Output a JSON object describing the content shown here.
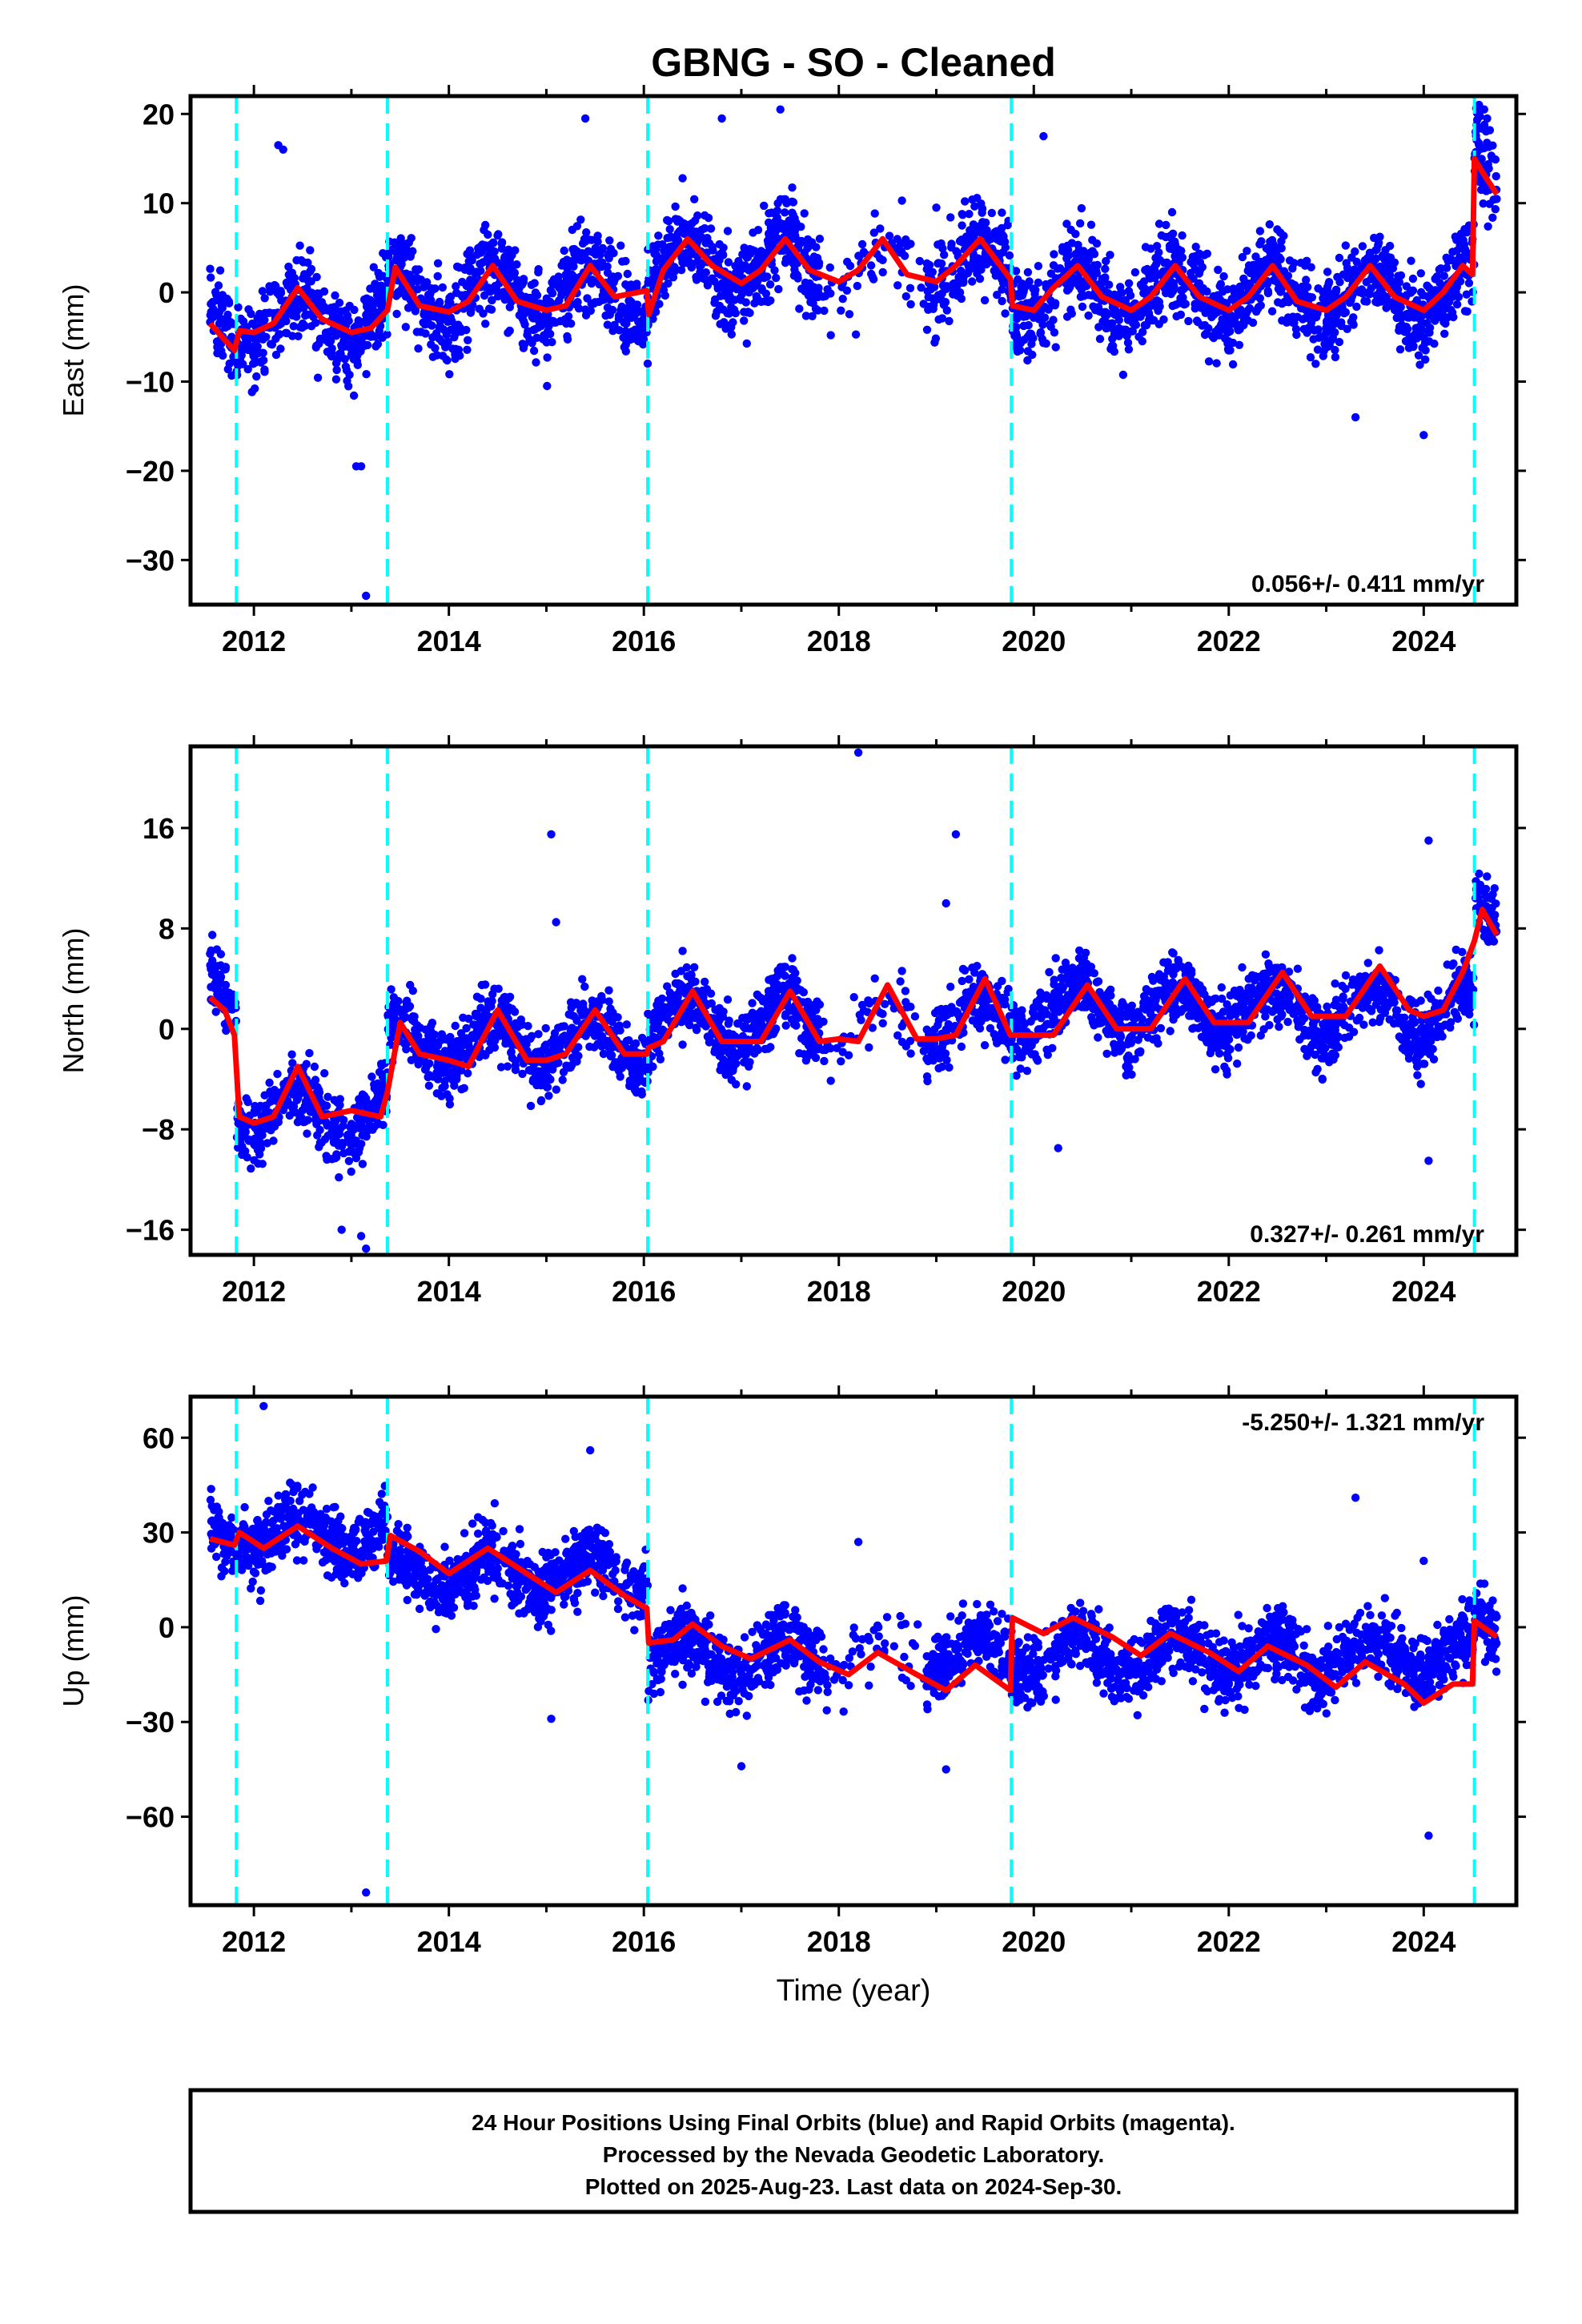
{
  "title": "GBNG  - SO - Cleaned",
  "xlabel": "Time (year)",
  "colors": {
    "points": "#0000ff",
    "fit": "#ff0000",
    "breaks": "#00ffff",
    "frame": "#000000"
  },
  "footer": {
    "line1": "24 Hour Positions Using Final Orbits (blue) and Rapid Orbits (magenta).",
    "line2": "Processed by the Nevada Geodetic Laboratory.",
    "line3": "Plotted on 2025-Aug-23. Last data on 2024-Sep-30."
  },
  "chart_data": [
    {
      "type": "scatter",
      "ylabel": "East (mm)",
      "xlim": [
        2011.35,
        2024.95
      ],
      "ylim": [
        -35,
        22
      ],
      "yticks": [
        20,
        10,
        0,
        -10,
        -20,
        -30
      ],
      "xticks": [
        2012,
        2014,
        2016,
        2018,
        2020,
        2022,
        2024
      ],
      "rate_label": "0.056+/- 0.411 mm/yr",
      "breaks": [
        2011.82,
        2013.37,
        2016.04,
        2019.77,
        2024.52
      ],
      "fit_line": [
        [
          2011.55,
          -3.5
        ],
        [
          2011.8,
          -6.5
        ],
        [
          2011.85,
          -4.3
        ],
        [
          2012.0,
          -4.5
        ],
        [
          2012.2,
          -3.5
        ],
        [
          2012.45,
          0.5
        ],
        [
          2012.7,
          -3.0
        ],
        [
          2013.0,
          -4.5
        ],
        [
          2013.2,
          -4.0
        ],
        [
          2013.37,
          -2.0
        ],
        [
          2013.45,
          2.8
        ],
        [
          2013.7,
          -1.5
        ],
        [
          2014.0,
          -2.2
        ],
        [
          2014.2,
          -1.0
        ],
        [
          2014.45,
          3.0
        ],
        [
          2014.7,
          -1.0
        ],
        [
          2015.0,
          -2.0
        ],
        [
          2015.2,
          -1.5
        ],
        [
          2015.45,
          3.0
        ],
        [
          2015.7,
          -0.5
        ],
        [
          2016.03,
          0.2
        ],
        [
          2016.05,
          -2.5
        ],
        [
          2016.2,
          2.5
        ],
        [
          2016.45,
          6.0
        ],
        [
          2016.7,
          3.0
        ],
        [
          2017.0,
          1.0
        ],
        [
          2017.2,
          2.5
        ],
        [
          2017.45,
          6.0
        ],
        [
          2017.7,
          2.5
        ],
        [
          2018.0,
          1.2
        ],
        [
          2018.2,
          2.5
        ],
        [
          2018.45,
          6.0
        ],
        [
          2018.7,
          2.0
        ],
        [
          2019.0,
          1.2
        ],
        [
          2019.2,
          3.0
        ],
        [
          2019.45,
          6.0
        ],
        [
          2019.76,
          1.5
        ],
        [
          2019.78,
          -1.5
        ],
        [
          2020.0,
          -2.0
        ],
        [
          2020.2,
          0.5
        ],
        [
          2020.45,
          3.0
        ],
        [
          2020.7,
          -0.5
        ],
        [
          2021.0,
          -2.0
        ],
        [
          2021.2,
          -0.5
        ],
        [
          2021.45,
          3.0
        ],
        [
          2021.7,
          -0.5
        ],
        [
          2022.0,
          -2.0
        ],
        [
          2022.2,
          -0.5
        ],
        [
          2022.45,
          3.0
        ],
        [
          2022.7,
          -1.0
        ],
        [
          2023.0,
          -2.0
        ],
        [
          2023.2,
          -0.5
        ],
        [
          2023.45,
          3.0
        ],
        [
          2023.7,
          -0.5
        ],
        [
          2024.0,
          -2.0
        ],
        [
          2024.2,
          0.0
        ],
        [
          2024.4,
          3.0
        ],
        [
          2024.5,
          2.0
        ],
        [
          2024.52,
          15.0
        ],
        [
          2024.6,
          13.5
        ],
        [
          2024.75,
          11.0
        ]
      ],
      "seg_centers": [
        [
          2011.55,
          2011.82,
          -4
        ],
        [
          2011.82,
          2013.37,
          -3
        ],
        [
          2013.37,
          2016.04,
          0
        ],
        [
          2016.04,
          2019.77,
          3
        ],
        [
          2019.77,
          2024.52,
          0
        ],
        [
          2024.52,
          2024.75,
          13
        ]
      ],
      "amp": 3,
      "noise": 4.0,
      "gap": [
        2017.8,
        2018.9
      ],
      "outliers": [
        [
          2012.25,
          16.5
        ],
        [
          2012.3,
          16.0
        ],
        [
          2013.05,
          -19.5
        ],
        [
          2013.1,
          -19.5
        ],
        [
          2013.15,
          -34
        ],
        [
          2015.4,
          19.5
        ],
        [
          2016.8,
          19.5
        ],
        [
          2017.4,
          20.5
        ],
        [
          2019.0,
          9.5
        ],
        [
          2020.1,
          17.5
        ],
        [
          2023.3,
          -14.0
        ],
        [
          2024.0,
          -16.0
        ],
        [
          2024.62,
          20.5
        ],
        [
          2024.65,
          19.5
        ]
      ]
    },
    {
      "type": "scatter",
      "ylabel": "North (mm)",
      "xlim": [
        2011.35,
        2024.95
      ],
      "ylim": [
        -18,
        22.5
      ],
      "yticks": [
        16,
        8,
        0,
        -8,
        -16
      ],
      "xticks": [
        2012,
        2014,
        2016,
        2018,
        2020,
        2022,
        2024
      ],
      "rate_label": "0.327+/- 0.261 mm/yr",
      "breaks": [
        2011.82,
        2013.37,
        2016.04,
        2019.77,
        2024.52
      ],
      "fit_line": [
        [
          2011.55,
          2.5
        ],
        [
          2011.7,
          1.5
        ],
        [
          2011.8,
          -0.5
        ],
        [
          2011.85,
          -7.0
        ],
        [
          2012.0,
          -7.5
        ],
        [
          2012.2,
          -7.0
        ],
        [
          2012.45,
          -3.0
        ],
        [
          2012.7,
          -7.0
        ],
        [
          2013.0,
          -6.5
        ],
        [
          2013.3,
          -7.0
        ],
        [
          2013.37,
          -5.0
        ],
        [
          2013.5,
          0.5
        ],
        [
          2013.7,
          -2.0
        ],
        [
          2014.0,
          -2.5
        ],
        [
          2014.2,
          -3.0
        ],
        [
          2014.5,
          1.5
        ],
        [
          2014.8,
          -2.5
        ],
        [
          2015.0,
          -2.5
        ],
        [
          2015.2,
          -2.0
        ],
        [
          2015.5,
          1.5
        ],
        [
          2015.8,
          -2.0
        ],
        [
          2016.03,
          -2.0
        ],
        [
          2016.05,
          -1.5
        ],
        [
          2016.2,
          -1.0
        ],
        [
          2016.5,
          3.0
        ],
        [
          2016.8,
          -1.0
        ],
        [
          2017.0,
          -1.0
        ],
        [
          2017.2,
          -1.0
        ],
        [
          2017.5,
          3.0
        ],
        [
          2017.8,
          -1.0
        ],
        [
          2018.0,
          -0.8
        ],
        [
          2018.2,
          -1.0
        ],
        [
          2018.5,
          3.5
        ],
        [
          2018.8,
          -0.8
        ],
        [
          2019.0,
          -0.8
        ],
        [
          2019.2,
          -0.5
        ],
        [
          2019.5,
          4.0
        ],
        [
          2019.76,
          -0.5
        ],
        [
          2019.78,
          -0.5
        ],
        [
          2020.0,
          -0.5
        ],
        [
          2020.2,
          -0.5
        ],
        [
          2020.55,
          3.5
        ],
        [
          2020.85,
          0.0
        ],
        [
          2021.0,
          0.0
        ],
        [
          2021.2,
          0.0
        ],
        [
          2021.55,
          4.0
        ],
        [
          2021.85,
          0.5
        ],
        [
          2022.0,
          0.5
        ],
        [
          2022.2,
          0.5
        ],
        [
          2022.55,
          4.5
        ],
        [
          2022.85,
          1.0
        ],
        [
          2023.0,
          1.0
        ],
        [
          2023.2,
          1.0
        ],
        [
          2023.55,
          5.0
        ],
        [
          2023.85,
          1.5
        ],
        [
          2024.0,
          1.0
        ],
        [
          2024.2,
          1.5
        ],
        [
          2024.4,
          4.5
        ],
        [
          2024.52,
          7.0
        ],
        [
          2024.6,
          9.5
        ],
        [
          2024.75,
          7.5
        ]
      ],
      "seg_centers": [
        [
          2011.55,
          2011.82,
          2.5
        ],
        [
          2011.82,
          2013.37,
          -6.5
        ],
        [
          2013.37,
          2016.04,
          -1
        ],
        [
          2016.04,
          2019.77,
          0.5
        ],
        [
          2019.77,
          2024.52,
          1.5
        ],
        [
          2024.52,
          2024.75,
          9
        ]
      ],
      "amp": 2,
      "noise": 2.2,
      "gap": [
        2017.8,
        2018.9
      ],
      "outliers": [
        [
          2015.05,
          15.5
        ],
        [
          2015.1,
          8.5
        ],
        [
          2018.2,
          22
        ],
        [
          2019.1,
          10.0
        ],
        [
          2019.2,
          15.5
        ],
        [
          2020.25,
          -9.5
        ],
        [
          2024.05,
          15.0
        ],
        [
          2024.05,
          -10.5
        ],
        [
          2013.1,
          -16.5
        ],
        [
          2013.15,
          -17.5
        ],
        [
          2012.9,
          -16.0
        ]
      ]
    },
    {
      "type": "scatter",
      "ylabel": "Up (mm)",
      "xlim": [
        2011.35,
        2024.95
      ],
      "ylim": [
        -88,
        73
      ],
      "yticks": [
        60,
        30,
        0,
        -30,
        -60
      ],
      "xticks": [
        2012,
        2014,
        2016,
        2018,
        2020,
        2022,
        2024
      ],
      "rate_label": "-5.250+/- 1.321 mm/yr",
      "breaks": [
        2011.82,
        2013.37,
        2016.04,
        2019.77,
        2024.52
      ],
      "fit_line": [
        [
          2011.55,
          28.0
        ],
        [
          2011.8,
          26.0
        ],
        [
          2011.85,
          30.0
        ],
        [
          2012.1,
          25.0
        ],
        [
          2012.45,
          32.0
        ],
        [
          2012.8,
          25.0
        ],
        [
          2013.1,
          20.0
        ],
        [
          2013.36,
          21.0
        ],
        [
          2013.4,
          29.0
        ],
        [
          2013.7,
          24.0
        ],
        [
          2014.0,
          17.0
        ],
        [
          2014.4,
          25.0
        ],
        [
          2014.8,
          17.0
        ],
        [
          2015.1,
          11.0
        ],
        [
          2015.45,
          18.0
        ],
        [
          2015.8,
          10.0
        ],
        [
          2016.03,
          6.0
        ],
        [
          2016.05,
          -5.0
        ],
        [
          2016.3,
          -4.0
        ],
        [
          2016.5,
          1.0
        ],
        [
          2016.8,
          -6.0
        ],
        [
          2017.1,
          -10.0
        ],
        [
          2017.5,
          -4.0
        ],
        [
          2017.8,
          -11.0
        ],
        [
          2018.1,
          -15.0
        ],
        [
          2018.4,
          -8.0
        ],
        [
          2018.8,
          -15.0
        ],
        [
          2019.1,
          -20.0
        ],
        [
          2019.4,
          -12.0
        ],
        [
          2019.76,
          -20.0
        ],
        [
          2019.78,
          3.0
        ],
        [
          2020.1,
          -2.0
        ],
        [
          2020.4,
          3.0
        ],
        [
          2020.8,
          -3.0
        ],
        [
          2021.1,
          -9.0
        ],
        [
          2021.4,
          -2.0
        ],
        [
          2021.8,
          -8.0
        ],
        [
          2022.1,
          -14.0
        ],
        [
          2022.4,
          -6.0
        ],
        [
          2022.8,
          -12.0
        ],
        [
          2023.1,
          -19.0
        ],
        [
          2023.4,
          -11.0
        ],
        [
          2023.8,
          -18.0
        ],
        [
          2024.0,
          -24.0
        ],
        [
          2024.3,
          -18.0
        ],
        [
          2024.5,
          -18.0
        ],
        [
          2024.52,
          2.0
        ],
        [
          2024.75,
          -3.0
        ]
      ],
      "seg_centers": [
        [
          2011.55,
          2011.82,
          28
        ],
        [
          2011.82,
          2013.37,
          30
        ],
        [
          2013.37,
          2016.04,
          17
        ],
        [
          2016.04,
          2019.77,
          -9
        ],
        [
          2019.77,
          2024.52,
          -9
        ],
        [
          2024.52,
          2024.75,
          -1
        ]
      ],
      "amp": 6,
      "noise": 9.0,
      "gap": [
        2017.8,
        2018.9
      ],
      "outliers": [
        [
          2012.1,
          70.0
        ],
        [
          2013.15,
          -84.0
        ],
        [
          2015.45,
          56.0
        ],
        [
          2015.05,
          -29.0
        ],
        [
          2018.2,
          27.0
        ],
        [
          2023.3,
          41.0
        ],
        [
          2024.05,
          -66.0
        ],
        [
          2024.0,
          21.0
        ],
        [
          2019.1,
          -45.0
        ],
        [
          2017.0,
          -44.0
        ]
      ]
    }
  ]
}
